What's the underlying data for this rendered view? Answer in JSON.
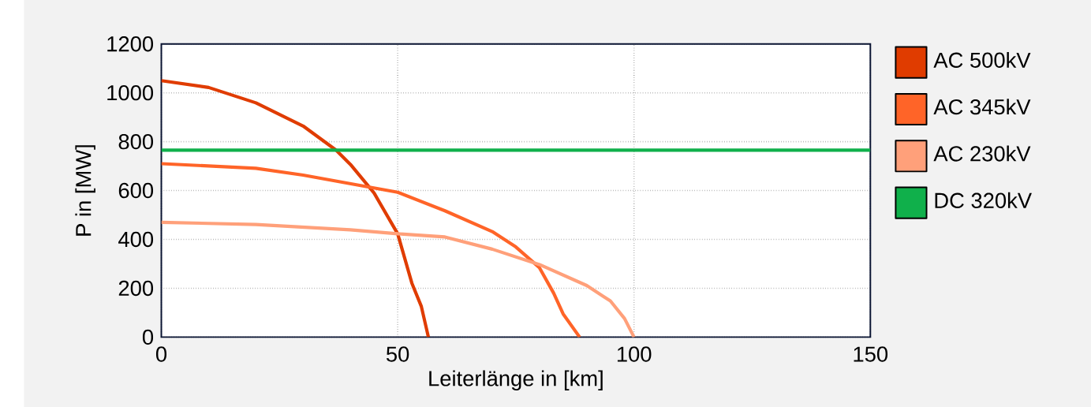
{
  "chart_data": {
    "type": "line",
    "xlabel": "Leiterlänge in [km]",
    "ylabel": "P in [MW]",
    "xlim": [
      0,
      150
    ],
    "xticks": [
      0,
      50,
      100,
      150
    ],
    "ylim": [
      0,
      1200
    ],
    "yticks": [
      0,
      200,
      400,
      600,
      800,
      1000,
      1200
    ],
    "grid": true,
    "legend": "right",
    "marker": "none",
    "line_style": "solid",
    "series": [
      {
        "name": "AC 500kV",
        "color": "#e03c00",
        "x": [
          0,
          10,
          20,
          30,
          37,
          40,
          45,
          50,
          53,
          55,
          56.5
        ],
        "values": [
          1050,
          1022,
          959,
          864,
          765,
          707,
          590,
          423,
          221,
          126,
          0
        ]
      },
      {
        "name": "AC 345kV",
        "color": "#ff6428",
        "x": [
          0,
          20,
          30,
          40,
          50,
          60,
          70,
          75,
          80,
          83,
          85,
          88.5
        ],
        "values": [
          710,
          691,
          663,
          628,
          593,
          517,
          432,
          369,
          284,
          180,
          95,
          0
        ]
      },
      {
        "name": "AC 230kV",
        "color": "#ffa07a",
        "x": [
          0,
          20,
          40,
          50,
          60,
          70,
          80,
          90,
          95,
          98,
          100
        ],
        "values": [
          470,
          461,
          439,
          423,
          410,
          360,
          297,
          211,
          148,
          76,
          0
        ]
      },
      {
        "name": "DC 320kV",
        "color": "#10b04b",
        "x": [
          0,
          150
        ],
        "values": [
          765,
          765
        ]
      }
    ]
  }
}
